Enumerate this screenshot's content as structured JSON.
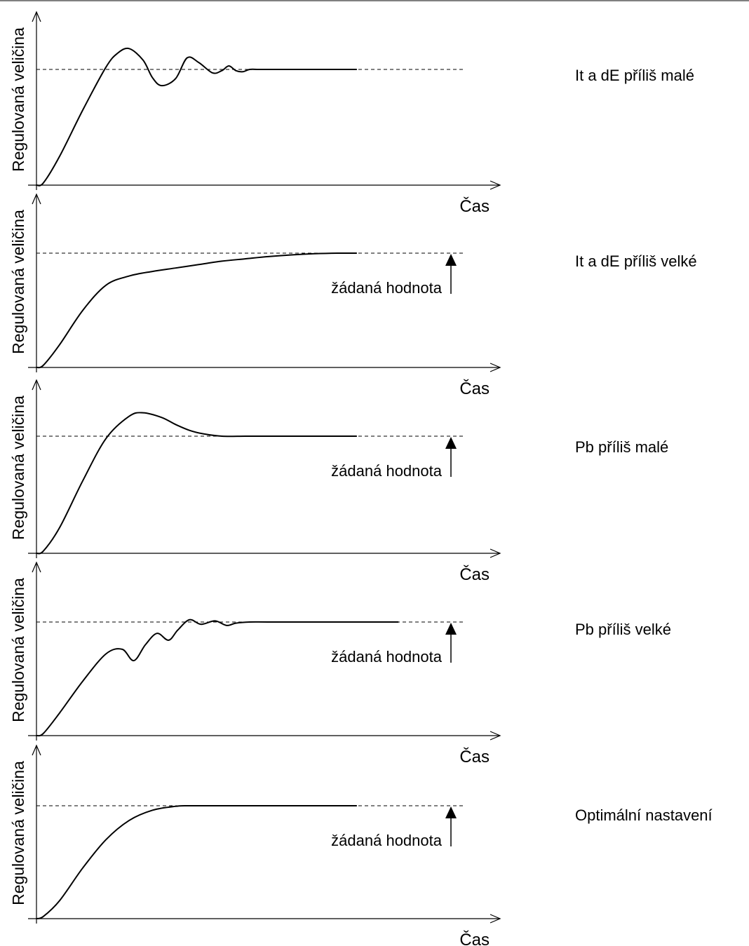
{
  "chart_data": [
    {
      "type": "line",
      "ylabel": "Regulovaná veličina",
      "xlabel": "Čas",
      "side_label": "It a dE příliš malé",
      "setpoint_label": "",
      "setpoint": 1.0,
      "ylim": [
        0,
        1.6
      ],
      "xlim": [
        0,
        10
      ],
      "series": [
        {
          "x": [
            0,
            0.15,
            0.5,
            1.0,
            1.5,
            1.75,
            2.0,
            2.3,
            2.5,
            2.7,
            3.0,
            3.25,
            3.5,
            3.8,
            4.0,
            4.15,
            4.3,
            4.45,
            4.6,
            4.8,
            5.2,
            6.0,
            6.9
          ],
          "y": [
            0,
            0.02,
            0.25,
            0.65,
            1.02,
            1.14,
            1.18,
            1.08,
            0.93,
            0.86,
            0.92,
            1.1,
            1.06,
            0.97,
            0.99,
            1.03,
            0.99,
            0.98,
            1.0,
            1.0,
            1.0,
            1.0,
            1.0
          ]
        }
      ]
    },
    {
      "type": "line",
      "ylabel": "Regulovaná veličina",
      "xlabel": "Čas",
      "side_label": "It a dE příliš velké",
      "setpoint_label": "žádaná hodnota",
      "setpoint": 1.0,
      "ylim": [
        0,
        1.6
      ],
      "xlim": [
        0,
        10
      ],
      "series": [
        {
          "x": [
            0,
            0.15,
            0.5,
            1.0,
            1.5,
            2.0,
            2.5,
            3.0,
            3.5,
            4.0,
            4.5,
            5.0,
            5.5,
            6.0,
            6.5,
            6.9
          ],
          "y": [
            0,
            0.02,
            0.2,
            0.5,
            0.72,
            0.8,
            0.84,
            0.87,
            0.9,
            0.93,
            0.95,
            0.97,
            0.985,
            0.995,
            1.0,
            1.0
          ]
        }
      ]
    },
    {
      "type": "line",
      "ylabel": "Regulovaná veličina",
      "xlabel": "Čas",
      "side_label": "Pb příliš malé",
      "setpoint_label": "žádaná hodnota",
      "setpoint": 1.0,
      "ylim": [
        0,
        1.6
      ],
      "xlim": [
        0,
        10
      ],
      "series": [
        {
          "x": [
            0,
            0.15,
            0.5,
            1.0,
            1.5,
            2.0,
            2.3,
            2.7,
            3.0,
            3.3,
            3.6,
            4.0,
            4.5,
            5.0,
            6.0,
            6.9
          ],
          "y": [
            0,
            0.02,
            0.22,
            0.62,
            0.98,
            1.17,
            1.2,
            1.16,
            1.1,
            1.05,
            1.02,
            1.0,
            1.0,
            1.0,
            1.0,
            1.0
          ]
        }
      ]
    },
    {
      "type": "line",
      "ylabel": "Regulovaná veličina",
      "xlabel": "Čas",
      "side_label": "Pb příliš velké",
      "setpoint_label": "žádaná hodnota",
      "setpoint": 1.0,
      "ylim": [
        0,
        1.6
      ],
      "xlim": [
        0,
        10
      ],
      "series": [
        {
          "x": [
            0,
            0.15,
            0.5,
            1.0,
            1.5,
            1.85,
            2.1,
            2.35,
            2.6,
            2.85,
            3.05,
            3.3,
            3.55,
            3.85,
            4.1,
            4.3,
            4.6,
            5.0,
            6.0,
            7.8
          ],
          "y": [
            0,
            0.02,
            0.2,
            0.48,
            0.72,
            0.76,
            0.66,
            0.8,
            0.9,
            0.84,
            0.93,
            1.02,
            0.98,
            1.01,
            0.97,
            0.99,
            1.0,
            1.0,
            1.0,
            1.0
          ]
        }
      ]
    },
    {
      "type": "line",
      "ylabel": "Regulovaná veličina",
      "xlabel": "Čas",
      "side_label": "Optimální nastavení",
      "setpoint_label": "žádaná hodnota",
      "setpoint": 1.0,
      "ylim": [
        0,
        1.6
      ],
      "xlim": [
        0,
        10
      ],
      "series": [
        {
          "x": [
            0,
            0.15,
            0.5,
            1.0,
            1.5,
            2.0,
            2.5,
            3.0,
            3.3,
            4.0,
            5.0,
            6.0,
            6.9
          ],
          "y": [
            0,
            0.02,
            0.16,
            0.45,
            0.7,
            0.87,
            0.96,
            0.995,
            1.0,
            1.0,
            1.0,
            1.0,
            1.0
          ]
        }
      ]
    }
  ]
}
